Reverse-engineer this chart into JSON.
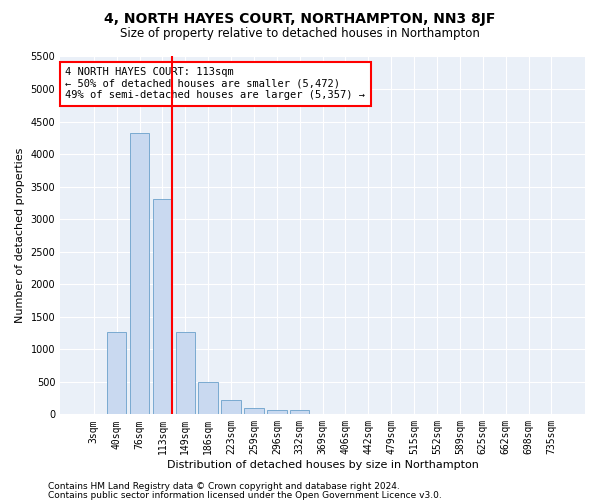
{
  "title1": "4, NORTH HAYES COURT, NORTHAMPTON, NN3 8JF",
  "title2": "Size of property relative to detached houses in Northampton",
  "xlabel": "Distribution of detached houses by size in Northampton",
  "ylabel": "Number of detached properties",
  "bar_labels": [
    "3sqm",
    "40sqm",
    "76sqm",
    "113sqm",
    "149sqm",
    "186sqm",
    "223sqm",
    "259sqm",
    "296sqm",
    "332sqm",
    "369sqm",
    "406sqm",
    "442sqm",
    "479sqm",
    "515sqm",
    "552sqm",
    "589sqm",
    "625sqm",
    "662sqm",
    "698sqm",
    "735sqm"
  ],
  "bar_values": [
    0,
    1270,
    4330,
    3310,
    1260,
    490,
    220,
    90,
    60,
    60,
    0,
    0,
    0,
    0,
    0,
    0,
    0,
    0,
    0,
    0,
    0
  ],
  "bar_color": "#c9d9f0",
  "bar_edge_color": "#7aaad0",
  "vline_color": "red",
  "vline_index": 3,
  "annotation_text": "4 NORTH HAYES COURT: 113sqm\n← 50% of detached houses are smaller (5,472)\n49% of semi-detached houses are larger (5,357) →",
  "annotation_box_color": "white",
  "annotation_box_edge_color": "red",
  "ylim": [
    0,
    5500
  ],
  "yticks": [
    0,
    500,
    1000,
    1500,
    2000,
    2500,
    3000,
    3500,
    4000,
    4500,
    5000,
    5500
  ],
  "bg_color": "#eaf0f8",
  "grid_color": "white",
  "footer1": "Contains HM Land Registry data © Crown copyright and database right 2024.",
  "footer2": "Contains public sector information licensed under the Open Government Licence v3.0.",
  "title1_fontsize": 10,
  "title2_fontsize": 8.5,
  "xlabel_fontsize": 8,
  "ylabel_fontsize": 8,
  "tick_fontsize": 7,
  "footer_fontsize": 6.5,
  "annotation_fontsize": 7.5
}
